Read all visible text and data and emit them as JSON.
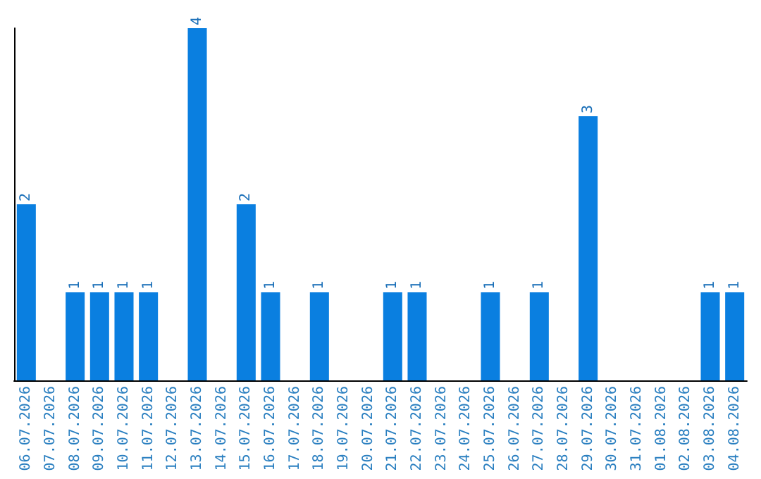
{
  "chart_data": {
    "type": "bar",
    "categories": [
      "06.07.2026",
      "07.07.2026",
      "08.07.2026",
      "09.07.2026",
      "10.07.2026",
      "11.07.2026",
      "12.07.2026",
      "13.07.2026",
      "14.07.2026",
      "15.07.2026",
      "16.07.2026",
      "17.07.2026",
      "18.07.2026",
      "19.07.2026",
      "20.07.2026",
      "21.07.2026",
      "22.07.2026",
      "23.07.2026",
      "24.07.2026",
      "25.07.2026",
      "26.07.2026",
      "27.07.2026",
      "28.07.2026",
      "29.07.2026",
      "30.07.2026",
      "31.07.2026",
      "01.08.2026",
      "02.08.2026",
      "03.08.2026",
      "04.08.2026"
    ],
    "values": [
      2,
      0,
      1,
      1,
      1,
      1,
      0,
      4,
      0,
      2,
      1,
      0,
      1,
      0,
      0,
      1,
      1,
      0,
      0,
      1,
      0,
      1,
      0,
      3,
      0,
      0,
      0,
      0,
      1,
      1
    ],
    "value_labels": [
      "2",
      null,
      "1",
      "1",
      "1",
      "1",
      null,
      "4",
      null,
      "2",
      "1",
      null,
      "1",
      null,
      null,
      "1",
      "1",
      null,
      null,
      "1",
      null,
      "1",
      null,
      "3",
      null,
      null,
      null,
      null,
      "1",
      "1"
    ],
    "color": "#0a7fe0",
    "ylim": [
      0,
      4
    ],
    "grid": false
  }
}
